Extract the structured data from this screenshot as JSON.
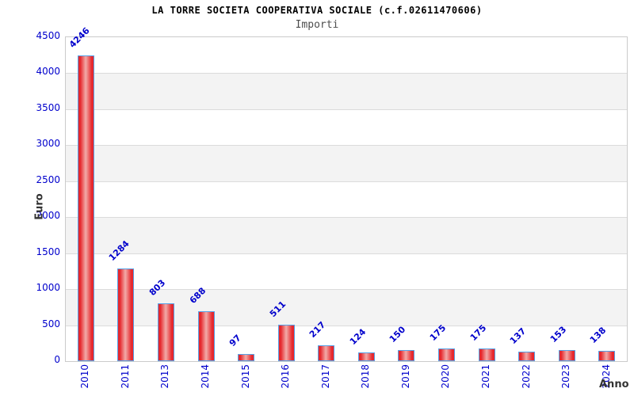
{
  "chart_data": {
    "type": "bar",
    "title": "LA TORRE SOCIETA COOPERATIVA SOCIALE (c.f.02611470606)",
    "subtitle": "Importi",
    "xlabel": "Anno",
    "ylabel": "Euro",
    "categories": [
      "2010",
      "2011",
      "2013",
      "2014",
      "2015",
      "2016",
      "2017",
      "2018",
      "2019",
      "2020",
      "2021",
      "2022",
      "2023",
      "2024"
    ],
    "values": [
      4246,
      1284,
      803,
      688,
      97,
      511,
      217,
      124,
      150,
      175,
      175,
      137,
      153,
      138
    ],
    "ylim": [
      0,
      4500
    ],
    "yticks": [
      0,
      500,
      1000,
      1500,
      2000,
      2500,
      3000,
      3500,
      4000,
      4500
    ],
    "grid": "horizontal-bands-alternating",
    "legend_position": "none",
    "colors": {
      "bar_fill": "#e6282d",
      "bar_highlight": "#f2aba8",
      "bar_border": "#55a0e6",
      "value_label": "#0000cc",
      "tick_label": "#0000cc",
      "band_gray": "#f3f3f3",
      "band_white": "#ffffff",
      "gridline": "#dbdbdb",
      "plot_border": "#cbcbcb",
      "title_color": "#000000",
      "subtitle_color": "#4d4d4d",
      "axis_title_color": "#333333"
    }
  }
}
